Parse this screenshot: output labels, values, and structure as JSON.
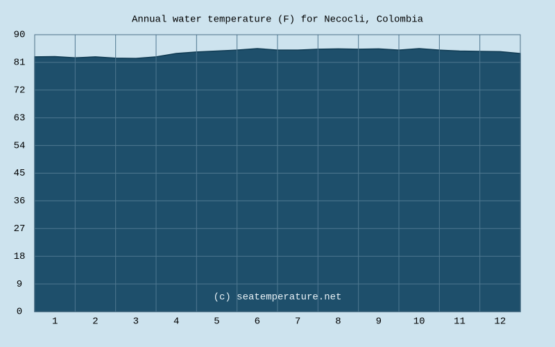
{
  "chart_data": {
    "type": "area",
    "title": "Annual water temperature (F) for Necocli, Colombia",
    "watermark": "(c) seatemperature.net",
    "series": [
      {
        "name": "Water temperature",
        "color": "#1e4f6b",
        "x": [
          0.5,
          1,
          1.5,
          2,
          2.5,
          3,
          3.5,
          4,
          4.5,
          5,
          5.5,
          6,
          6.5,
          7,
          7.5,
          8,
          8.5,
          9,
          9.5,
          10,
          10.5,
          11,
          11.5,
          12,
          12.5
        ],
        "values": [
          82.8,
          82.9,
          82.5,
          82.8,
          82.4,
          82.3,
          82.8,
          83.9,
          84.4,
          84.7,
          85.0,
          85.5,
          85.0,
          85.0,
          85.3,
          85.4,
          85.3,
          85.4,
          85.0,
          85.5,
          85.0,
          84.7,
          84.6,
          84.5,
          83.9
        ]
      }
    ],
    "xlim": [
      0.5,
      12.5
    ],
    "xticks": [
      1,
      2,
      3,
      4,
      5,
      6,
      7,
      8,
      9,
      10,
      11,
      12
    ],
    "ylim": [
      0,
      90
    ],
    "yticks": [
      0,
      9,
      18,
      27,
      36,
      45,
      54,
      63,
      72,
      81,
      90
    ],
    "grid": true
  }
}
